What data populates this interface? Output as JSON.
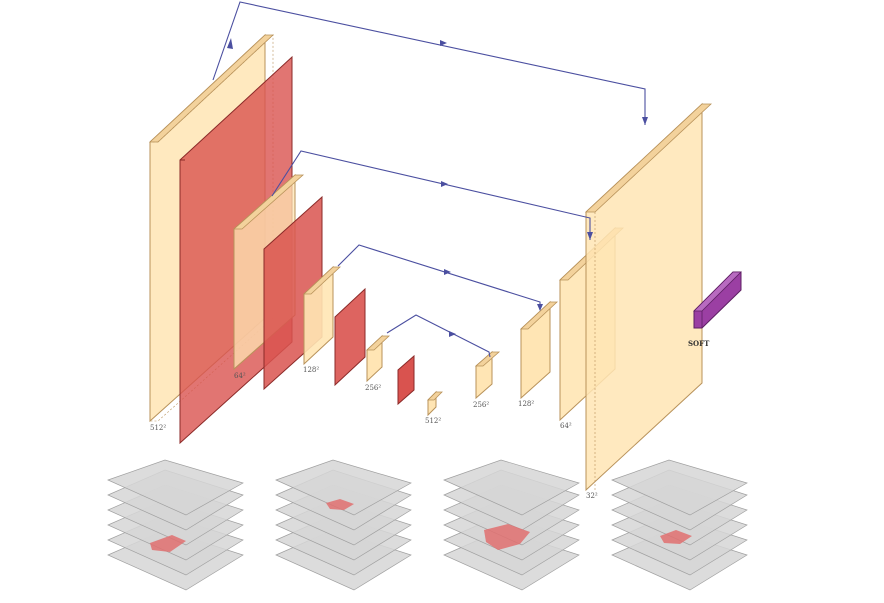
{
  "colors": {
    "conv": "#ffe5b4",
    "conv_edge": "#b8925a",
    "pool": "#d9534f",
    "pool_edge": "#8b2a28",
    "softmax": "#9b3fa3",
    "skip_arrow": "#4b4fa0",
    "slice_stack": "#c8c8c8",
    "segmentation": "#e07070"
  },
  "encoder": {
    "labels": [
      "512²",
      "64²",
      "128²",
      "256²",
      "512²"
    ]
  },
  "decoder": {
    "labels": [
      "256²",
      "128²",
      "64²",
      "32²"
    ]
  },
  "output": {
    "label": "SOFT"
  },
  "slice_stacks": {
    "count": 4
  }
}
